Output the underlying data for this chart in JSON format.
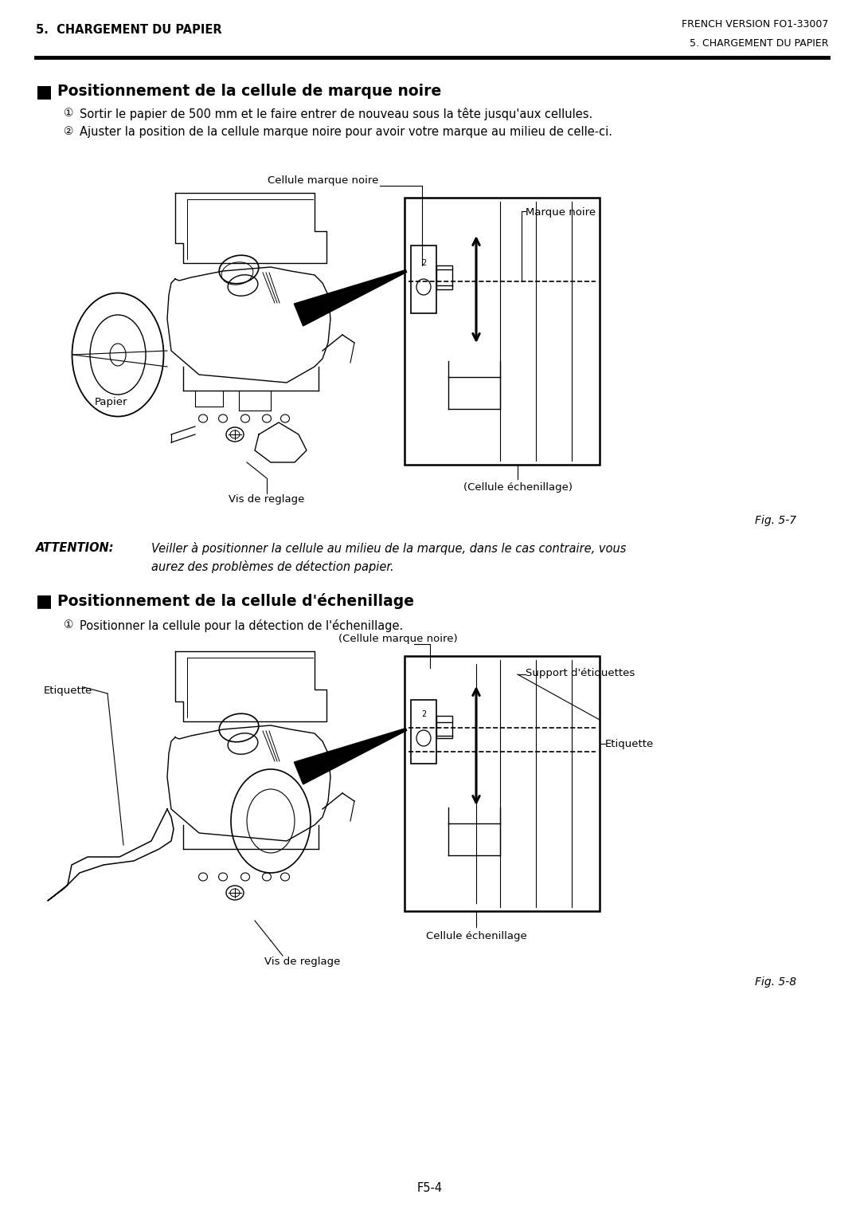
{
  "page_bg": "#ffffff",
  "header_left": "5.  CHARGEMENT DU PAPIER",
  "header_right": "FRENCH VERSION FO1-33007",
  "header_right2": "5. CHARGEMENT DU PAPIER",
  "footer": "F5-4",
  "section1_title": "Positionnement de la cellule de marque noire",
  "section1_item1": "Sortir le papier de 500 mm et le faire entrer de nouveau sous la tête jusqu'aux cellules.",
  "section1_item2": "Ajuster la position de la cellule marque noire pour avoir votre marque au milieu de celle-ci.",
  "fig1_label": "Fig. 5-7",
  "fig1_label_cmn": "Cellule marque noire",
  "fig1_label_mn": "Marque noire",
  "fig1_label_papier": "Papier",
  "fig1_label_vis": "Vis de reglage",
  "fig1_label_ce": "(Cellule échenillage)",
  "attention_label": "ATTENTION:",
  "attention_text1": "Veiller à positionner la cellule au milieu de la marque, dans le cas contraire, vous",
  "attention_text2": "aurez des problèmes de détection papier.",
  "section2_title": "Positionnement de la cellule d'échenillage",
  "section2_item1": "Positionner la cellule pour la détection de l'échenillage.",
  "fig2_label": "Fig. 5-8",
  "fig2_label_cmn": "(Cellule marque noire)",
  "fig2_label_sde": "Support d'étiquettes",
  "fig2_label_etiq_r": "Etiquette",
  "fig2_label_etiq_l": "Etiquette",
  "fig2_label_vis": "Vis de reglage",
  "fig2_label_ce": "Cellule échenillage",
  "circ1": "①",
  "circ2": "②",
  "bullet": "■"
}
